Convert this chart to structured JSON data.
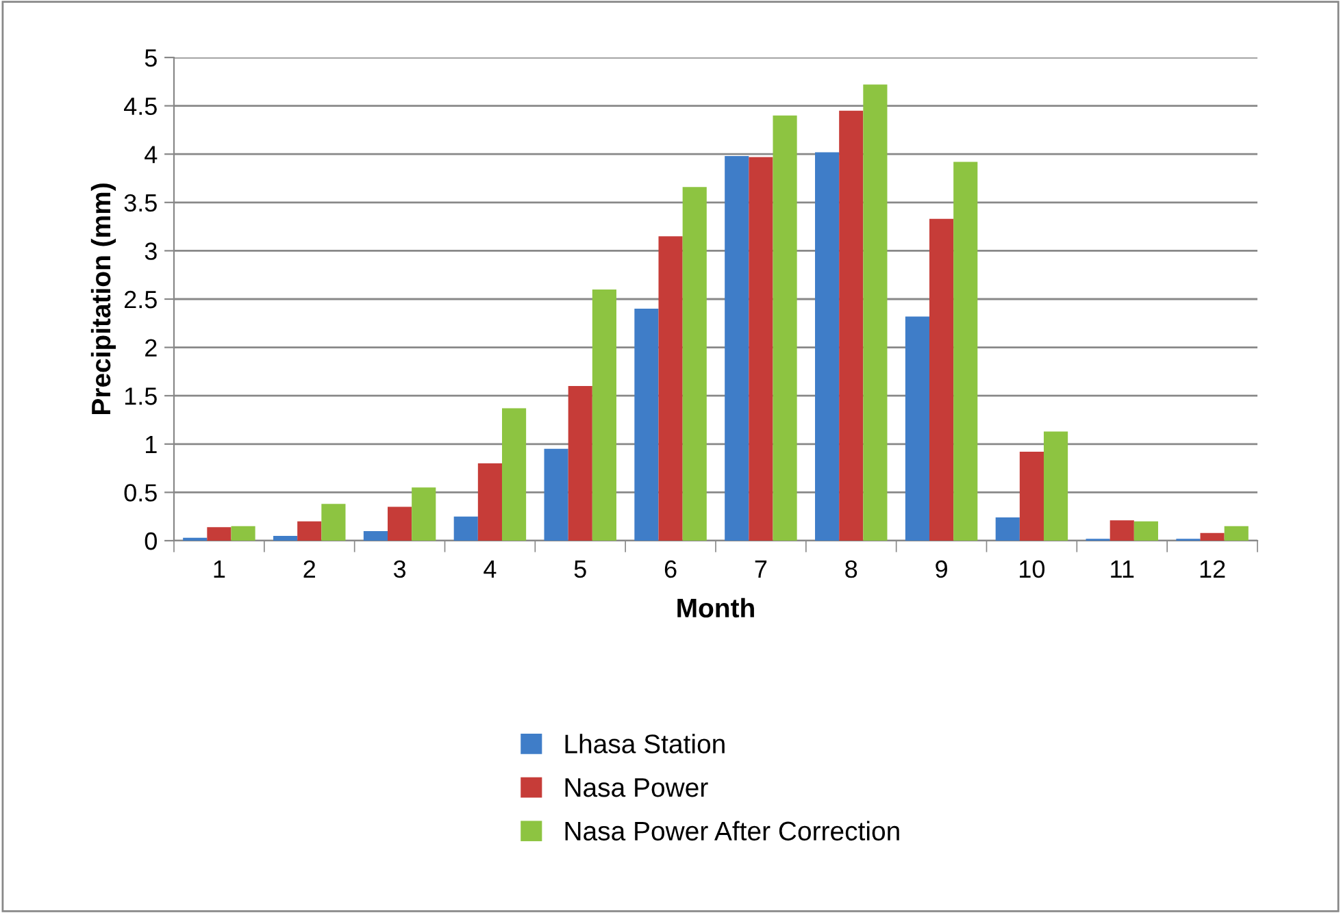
{
  "chart_data": {
    "type": "bar",
    "xlabel": "Month",
    "ylabel": "Precipitation (mm)",
    "categories": [
      "1",
      "2",
      "3",
      "4",
      "5",
      "6",
      "7",
      "8",
      "9",
      "10",
      "11",
      "12"
    ],
    "series": [
      {
        "name": "Lhasa Station",
        "color": "#3f7dc8",
        "values": [
          0.03,
          0.05,
          0.1,
          0.25,
          0.95,
          2.4,
          3.98,
          4.02,
          2.32,
          0.24,
          0.02,
          0.02
        ]
      },
      {
        "name": "Nasa Power",
        "color": "#c63c38",
        "values": [
          0.14,
          0.2,
          0.35,
          0.8,
          1.6,
          3.15,
          3.97,
          4.45,
          3.33,
          0.92,
          0.21,
          0.08
        ]
      },
      {
        "name": "Nasa Power After Correction",
        "color": "#8dc441",
        "values": [
          0.15,
          0.38,
          0.55,
          1.37,
          2.6,
          3.66,
          4.4,
          4.72,
          3.92,
          1.13,
          0.2,
          0.15
        ]
      }
    ],
    "ylim": [
      0,
      5
    ],
    "yticks": [
      0,
      0.5,
      1,
      1.5,
      2,
      2.5,
      3,
      3.5,
      4,
      4.5,
      5
    ],
    "grid": "y",
    "legend": "bottom"
  }
}
